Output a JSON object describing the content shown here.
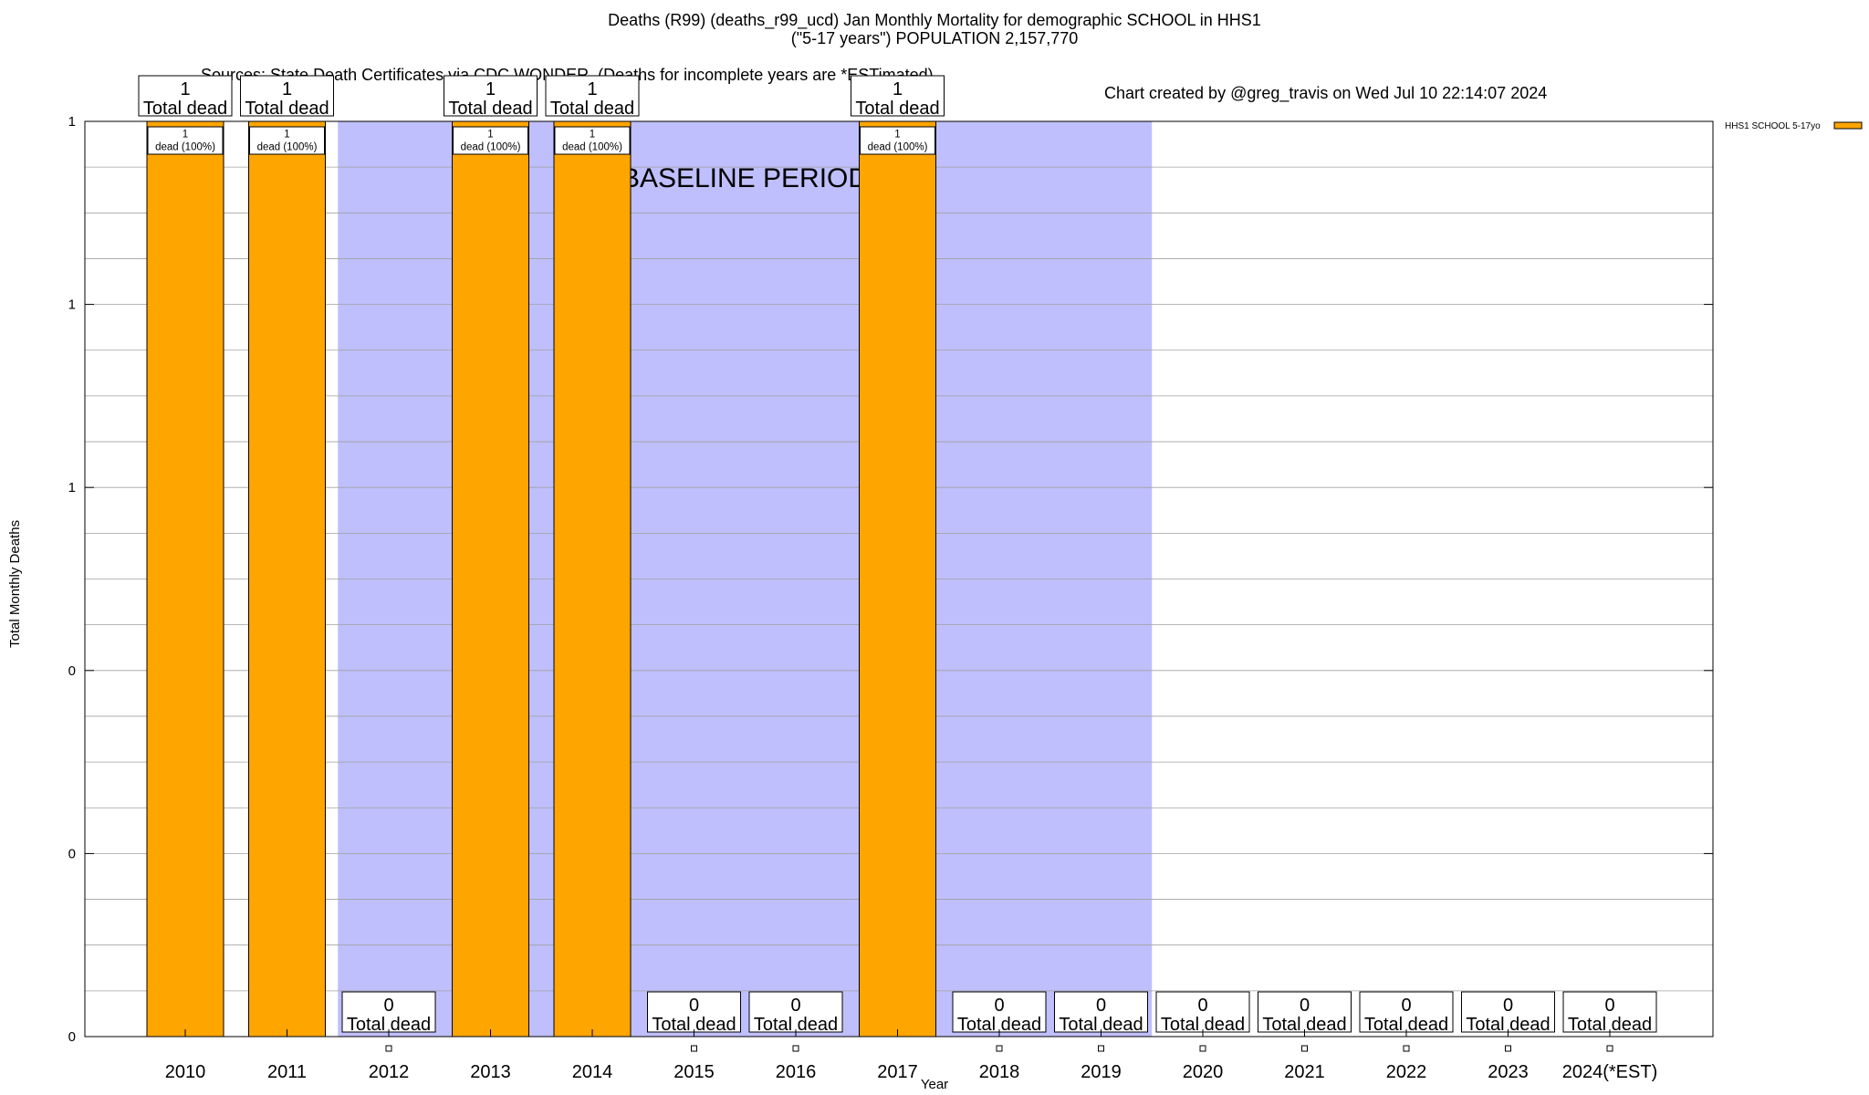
{
  "title_line1": "Deaths (R99) (deaths_r99_ucd) Jan Monthly Mortality for demographic SCHOOL in HHS1",
  "title_line2": "(\"5-17 years\") POPULATION 2,157,770",
  "title_sources": "Sources: State Death Certificates via CDC WONDER. (Deaths for incomplete years are *ESTimated)",
  "title_credit": "Chart created by @greg_travis on Wed Jul 10 22:14:07 2024",
  "chart_data": {
    "type": "bar",
    "categories": [
      "2010",
      "2011",
      "2012",
      "2013",
      "2014",
      "2015",
      "2016",
      "2017",
      "2018",
      "2019",
      "2020",
      "2021",
      "2022",
      "2023",
      "2024(*EST)"
    ],
    "series": [
      {
        "name": "HHS1 SCHOOL 5-17yo",
        "values": [
          1,
          1,
          0,
          1,
          1,
          0,
          0,
          1,
          0,
          0,
          0,
          0,
          0,
          0,
          0
        ],
        "color": "#ffa500"
      }
    ],
    "total_labels": [
      "1\nTotal dead",
      "1\nTotal dead",
      "0\nTotal dead",
      "1\nTotal dead",
      "1\nTotal dead",
      "0\nTotal dead",
      "0\nTotal dead",
      "1\nTotal dead",
      "0\nTotal dead",
      "0\nTotal dead",
      "0\nTotal dead",
      "0\nTotal dead",
      "0\nTotal dead",
      "0\nTotal dead",
      "0\nTotal dead"
    ],
    "segment_labels": [
      "1\ndead (100%)",
      "1\ndead (100%)",
      "",
      "1\ndead (100%)",
      "1\ndead (100%)",
      "",
      "",
      "1\ndead (100%)",
      "",
      "",
      "",
      "",
      "",
      "",
      ""
    ],
    "baseline_period": {
      "label": "BASELINE PERIOD",
      "from": "2012",
      "to": "2019",
      "color": "#bfbffd"
    },
    "ylabel": "Total Monthly Deaths",
    "xlabel": "Year",
    "ylim": [
      0,
      1
    ],
    "ytick_labels": [
      "0",
      "0",
      "0",
      "1",
      "1",
      "1"
    ],
    "legend": {
      "placement": "top-right outside",
      "entries": [
        "HHS1 SCHOOL 5-17yo"
      ]
    },
    "grid": true
  }
}
